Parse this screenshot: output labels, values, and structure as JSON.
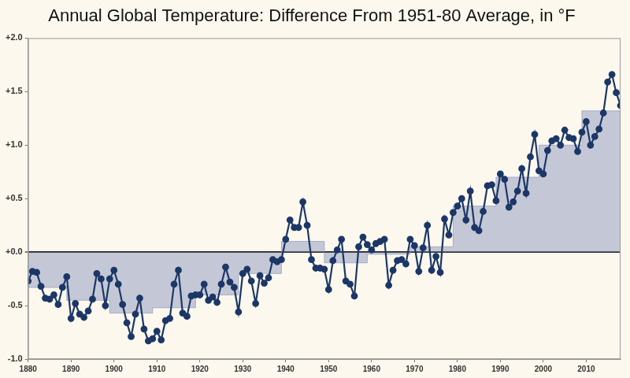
{
  "chart_data": {
    "type": "line",
    "title": "Annual Global Temperature: Difference From 1951-80 Average, in °F",
    "x": [
      1880,
      1881,
      1882,
      1883,
      1884,
      1885,
      1886,
      1887,
      1888,
      1889,
      1890,
      1891,
      1892,
      1893,
      1894,
      1895,
      1896,
      1897,
      1898,
      1899,
      1900,
      1901,
      1902,
      1903,
      1904,
      1905,
      1906,
      1907,
      1908,
      1909,
      1910,
      1911,
      1912,
      1913,
      1914,
      1915,
      1916,
      1917,
      1918,
      1919,
      1920,
      1921,
      1922,
      1923,
      1924,
      1925,
      1926,
      1927,
      1928,
      1929,
      1930,
      1931,
      1932,
      1933,
      1934,
      1935,
      1936,
      1937,
      1938,
      1939,
      1940,
      1941,
      1942,
      1943,
      1944,
      1945,
      1946,
      1947,
      1948,
      1949,
      1950,
      1951,
      1952,
      1953,
      1954,
      1955,
      1956,
      1957,
      1958,
      1959,
      1960,
      1961,
      1962,
      1963,
      1964,
      1965,
      1966,
      1967,
      1968,
      1969,
      1970,
      1971,
      1972,
      1973,
      1974,
      1975,
      1976,
      1977,
      1978,
      1979,
      1980,
      1981,
      1982,
      1983,
      1984,
      1985,
      1986,
      1987,
      1988,
      1989,
      1990,
      1991,
      1992,
      1993,
      1994,
      1995,
      1996,
      1997,
      1998,
      1999,
      2000,
      2001,
      2002,
      2003,
      2004,
      2005,
      2006,
      2007,
      2008,
      2009,
      2010,
      2011,
      2012,
      2013,
      2014,
      2015,
      2016,
      2017,
      2018
    ],
    "series": [
      {
        "type": "line",
        "color": "#1c3767",
        "marker": "circle",
        "line_style": "solid",
        "values": [
          -0.27,
          -0.18,
          -0.19,
          -0.32,
          -0.43,
          -0.44,
          -0.4,
          -0.49,
          -0.33,
          -0.23,
          -0.62,
          -0.48,
          -0.58,
          -0.61,
          -0.55,
          -0.44,
          -0.2,
          -0.25,
          -0.5,
          -0.25,
          -0.17,
          -0.3,
          -0.49,
          -0.66,
          -0.79,
          -0.58,
          -0.43,
          -0.72,
          -0.83,
          -0.81,
          -0.74,
          -0.82,
          -0.64,
          -0.62,
          -0.3,
          -0.17,
          -0.57,
          -0.6,
          -0.41,
          -0.4,
          -0.4,
          -0.3,
          -0.45,
          -0.42,
          -0.47,
          -0.3,
          -0.14,
          -0.28,
          -0.33,
          -0.56,
          -0.2,
          -0.16,
          -0.27,
          -0.48,
          -0.22,
          -0.29,
          -0.24,
          -0.07,
          -0.09,
          -0.07,
          0.12,
          0.3,
          0.23,
          0.23,
          0.47,
          0.25,
          -0.07,
          -0.15,
          -0.15,
          -0.16,
          -0.35,
          -0.08,
          0.02,
          0.12,
          -0.27,
          -0.3,
          -0.41,
          0.05,
          0.14,
          0.07,
          0.02,
          0.08,
          0.1,
          0.12,
          -0.31,
          -0.17,
          -0.08,
          -0.07,
          -0.11,
          0.12,
          0.06,
          -0.18,
          0.04,
          0.25,
          -0.17,
          -0.04,
          -0.19,
          0.31,
          0.16,
          0.37,
          0.43,
          0.5,
          0.3,
          0.57,
          0.23,
          0.2,
          0.38,
          0.62,
          0.63,
          0.48,
          0.73,
          0.68,
          0.42,
          0.47,
          0.57,
          0.78,
          0.55,
          0.89,
          1.1,
          0.76,
          0.73,
          0.95,
          1.04,
          1.06,
          1.0,
          1.14,
          1.07,
          1.06,
          0.94,
          1.12,
          1.22,
          1.0,
          1.08,
          1.15,
          1.3,
          1.59,
          1.66,
          1.49,
          1.37
        ]
      },
      {
        "type": "area",
        "color": "#8c98bd",
        "line_style": "step",
        "values": [
          -0.33,
          -0.33,
          -0.33,
          -0.33,
          -0.33,
          -0.33,
          -0.33,
          -0.33,
          -0.33,
          -0.33,
          -0.45,
          -0.45,
          -0.45,
          -0.45,
          -0.45,
          -0.45,
          -0.45,
          -0.45,
          -0.45,
          -0.45,
          -0.57,
          -0.57,
          -0.57,
          -0.57,
          -0.57,
          -0.57,
          -0.57,
          -0.57,
          -0.57,
          -0.57,
          -0.52,
          -0.52,
          -0.52,
          -0.52,
          -0.52,
          -0.52,
          -0.52,
          -0.52,
          -0.52,
          -0.52,
          -0.4,
          -0.4,
          -0.4,
          -0.4,
          -0.4,
          -0.4,
          -0.4,
          -0.4,
          -0.4,
          -0.4,
          -0.2,
          -0.2,
          -0.2,
          -0.2,
          -0.2,
          -0.2,
          -0.2,
          -0.2,
          -0.2,
          -0.2,
          0.1,
          0.1,
          0.1,
          0.1,
          0.1,
          0.1,
          0.1,
          0.1,
          0.1,
          0.1,
          -0.1,
          -0.1,
          -0.1,
          -0.1,
          -0.1,
          -0.1,
          -0.1,
          -0.1,
          -0.1,
          -0.1,
          -0.02,
          -0.02,
          -0.02,
          -0.02,
          -0.02,
          -0.02,
          -0.02,
          -0.02,
          -0.02,
          -0.02,
          0.05,
          0.05,
          0.05,
          0.05,
          0.05,
          0.05,
          0.05,
          0.05,
          0.05,
          0.05,
          0.43,
          0.43,
          0.43,
          0.43,
          0.43,
          0.43,
          0.43,
          0.43,
          0.43,
          0.43,
          0.7,
          0.7,
          0.7,
          0.7,
          0.7,
          0.7,
          0.7,
          0.7,
          0.7,
          0.7,
          1.0,
          1.0,
          1.0,
          1.0,
          1.0,
          1.0,
          1.0,
          1.0,
          1.0,
          1.0,
          1.32,
          1.32,
          1.32,
          1.32,
          1.32,
          1.32,
          1.32,
          1.32,
          1.32
        ]
      }
    ],
    "xlim": [
      1880,
      2018
    ],
    "xticks": [
      1880,
      1890,
      1900,
      1910,
      1920,
      1930,
      1940,
      1950,
      1960,
      1970,
      1980,
      1990,
      2000,
      2010
    ],
    "ylim": [
      -1.0,
      2.0
    ],
    "yticks": [
      {
        "value": -1.0,
        "label": "-1.0"
      },
      {
        "value": -0.5,
        "label": "-0.5"
      },
      {
        "value": 0,
        "label": "+0.0"
      },
      {
        "value": 0.5,
        "label": "+0.5"
      },
      {
        "value": 1.0,
        "label": "+1.0"
      },
      {
        "value": 1.5,
        "label": "+1.5"
      },
      {
        "value": 2.0,
        "label": "+2.0"
      }
    ],
    "grid": false
  }
}
